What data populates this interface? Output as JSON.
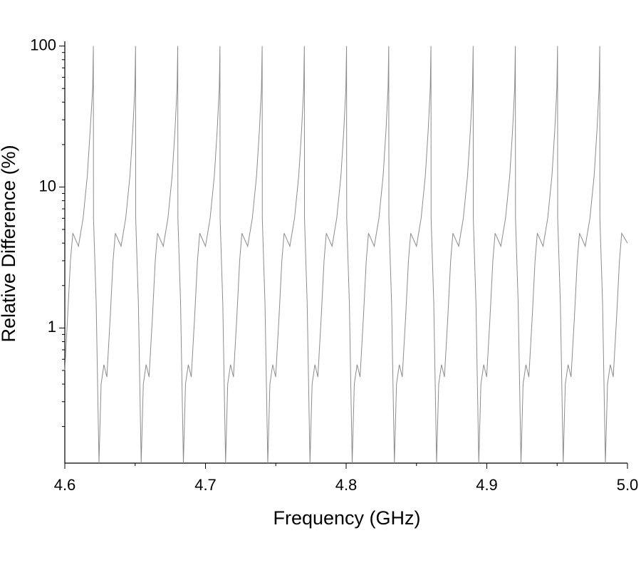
{
  "chart_data": {
    "type": "line",
    "xlabel": "Frequency (GHz)",
    "ylabel": "Relative Difference (%)",
    "log_y": true,
    "grid": false,
    "xlim": [
      4.6,
      5.0
    ],
    "xticks": [
      4.6,
      4.7,
      4.8,
      4.9,
      {
        "value": 5,
        "label": "5.0"
      }
    ],
    "xminorticks": [
      4.65,
      4.75,
      4.85,
      4.95
    ],
    "ylim": [
      0.11,
      108
    ],
    "yticks": [
      1,
      10,
      100
    ],
    "yminorticks": [
      0.2,
      0.3,
      0.4,
      0.5,
      0.6,
      0.7,
      0.8,
      0.9,
      2,
      3,
      4,
      5,
      6,
      7,
      8,
      9,
      20,
      30,
      40,
      50,
      60,
      70,
      80,
      90
    ],
    "series": [
      {
        "color": "#8c8c8c",
        "x": [
          4.6,
          4.602,
          4.604,
          4.6057,
          4.6097,
          4.613,
          4.616,
          4.618,
          4.6198,
          4.6203,
          4.6204,
          4.6223,
          4.6243,
          4.6258,
          4.6278,
          4.6299,
          4.6323,
          4.6343,
          4.6359,
          4.64,
          4.6433,
          4.6463,
          4.6483,
          4.6498,
          4.6503,
          4.6504,
          4.6523,
          4.6543,
          4.6558,
          4.6578,
          4.6599,
          4.6623,
          4.6643,
          4.6659,
          4.67,
          4.6733,
          4.6763,
          4.6783,
          4.6798,
          4.6803,
          4.6804,
          4.6823,
          4.6843,
          4.6858,
          4.6878,
          4.6899,
          4.6923,
          4.6943,
          4.6959,
          4.7,
          4.7033,
          4.7063,
          4.7083,
          4.7098,
          4.7103,
          4.7104,
          4.7123,
          4.7143,
          4.7158,
          4.7178,
          4.7199,
          4.7223,
          4.7243,
          4.7259,
          4.73,
          4.7333,
          4.7363,
          4.7383,
          4.7398,
          4.7403,
          4.7404,
          4.7423,
          4.7443,
          4.7458,
          4.7478,
          4.7499,
          4.7523,
          4.7543,
          4.7559,
          4.76,
          4.7633,
          4.7663,
          4.7683,
          4.7698,
          4.7703,
          4.7704,
          4.7723,
          4.7743,
          4.7758,
          4.7778,
          4.7799,
          4.7823,
          4.7843,
          4.7859,
          4.79,
          4.7933,
          4.7963,
          4.7983,
          4.7998,
          4.8003,
          4.8004,
          4.8023,
          4.8043,
          4.8058,
          4.8078,
          4.8099,
          4.8123,
          4.8143,
          4.8159,
          4.82,
          4.8233,
          4.8263,
          4.8283,
          4.8298,
          4.8303,
          4.8304,
          4.8323,
          4.8343,
          4.8358,
          4.8378,
          4.8399,
          4.8423,
          4.8443,
          4.8459,
          4.85,
          4.8533,
          4.8563,
          4.8583,
          4.8598,
          4.8603,
          4.8604,
          4.8623,
          4.8643,
          4.8658,
          4.8678,
          4.8699,
          4.8723,
          4.8743,
          4.8759,
          4.88,
          4.8833,
          4.8863,
          4.8883,
          4.8898,
          4.8903,
          4.8904,
          4.8923,
          4.8943,
          4.8958,
          4.8978,
          4.8999,
          4.9023,
          4.9043,
          4.9059,
          4.91,
          4.9133,
          4.9163,
          4.9183,
          4.9198,
          4.9203,
          4.9204,
          4.9223,
          4.9243,
          4.9258,
          4.9278,
          4.9299,
          4.9323,
          4.9343,
          4.9359,
          4.94,
          4.9433,
          4.9463,
          4.9483,
          4.9498,
          4.9503,
          4.9504,
          4.9523,
          4.9543,
          4.9558,
          4.9578,
          4.9599,
          4.9623,
          4.9643,
          4.9659,
          4.97,
          4.9733,
          4.9763,
          4.9783,
          4.9798,
          4.9803,
          4.9804,
          4.9823,
          4.9843,
          4.9858,
          4.9878,
          4.9899,
          4.9923,
          4.9943,
          4.9959,
          5.0
        ],
        "values": [
          0.5,
          1.2,
          3,
          4.7,
          3.8,
          6,
          12,
          25,
          50,
          100,
          6,
          1.5,
          0.11,
          0.4,
          0.55,
          0.45,
          1.2,
          3,
          4.7,
          3.8,
          6,
          12,
          25,
          50,
          100,
          6,
          1.5,
          0.11,
          0.4,
          0.55,
          0.45,
          1.2,
          3,
          4.7,
          3.8,
          6,
          12,
          25,
          50,
          100,
          6,
          1.5,
          0.11,
          0.4,
          0.55,
          0.45,
          1.2,
          3,
          4.7,
          3.8,
          6,
          12,
          25,
          50,
          100,
          6,
          1.5,
          0.11,
          0.4,
          0.55,
          0.45,
          1.2,
          3,
          4.7,
          3.8,
          6,
          12,
          25,
          50,
          100,
          6,
          1.5,
          0.11,
          0.4,
          0.55,
          0.45,
          1.2,
          3,
          4.7,
          3.8,
          6,
          12,
          25,
          50,
          100,
          6,
          1.5,
          0.11,
          0.4,
          0.55,
          0.45,
          1.2,
          3,
          4.7,
          3.8,
          6,
          12,
          25,
          50,
          100,
          6,
          1.5,
          0.11,
          0.4,
          0.55,
          0.45,
          1.2,
          3,
          4.7,
          3.8,
          6,
          12,
          25,
          50,
          100,
          6,
          1.5,
          0.11,
          0.4,
          0.55,
          0.45,
          1.2,
          3,
          4.7,
          3.8,
          6,
          12,
          25,
          50,
          100,
          6,
          1.5,
          0.11,
          0.4,
          0.55,
          0.45,
          1.2,
          3,
          4.7,
          3.8,
          6,
          12,
          25,
          50,
          100,
          6,
          1.5,
          0.11,
          0.4,
          0.55,
          0.45,
          1.2,
          3,
          4.7,
          3.8,
          6,
          12,
          25,
          50,
          100,
          6,
          1.5,
          0.11,
          0.4,
          0.55,
          0.45,
          1.2,
          3,
          4.7,
          3.8,
          6,
          12,
          25,
          50,
          100,
          6,
          1.5,
          0.11,
          0.4,
          0.55,
          0.45,
          1.2,
          3,
          4.7,
          3.8,
          6,
          12,
          25,
          50,
          100,
          6,
          1.5,
          0.11,
          0.4,
          0.55,
          0.45,
          1.2,
          3,
          4.7,
          4.0
        ]
      }
    ]
  }
}
